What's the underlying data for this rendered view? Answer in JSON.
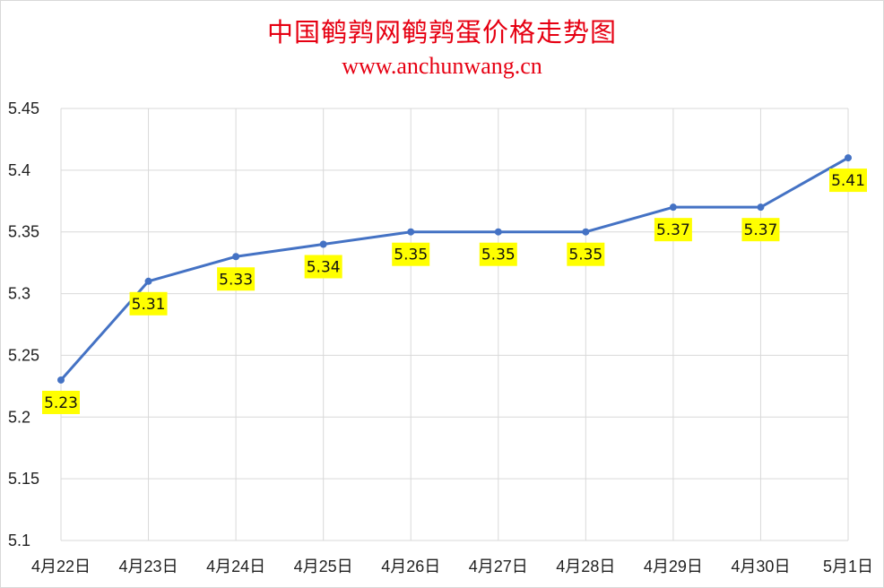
{
  "header": {
    "title": "中国鹌鹑网鹌鹑蛋价格走势图",
    "subtitle": "www.anchunwang.cn"
  },
  "chart_data": {
    "type": "line",
    "title": "中国鹌鹑网鹌鹑蛋价格走势图",
    "subtitle": "www.anchunwang.cn",
    "xlabel": "",
    "ylabel": "",
    "categories": [
      "4月22日",
      "4月23日",
      "4月24日",
      "4月25日",
      "4月26日",
      "4月27日",
      "4月28日",
      "4月29日",
      "4月30日",
      "5月1日"
    ],
    "series": [
      {
        "values": [
          5.23,
          5.31,
          5.33,
          5.34,
          5.35,
          5.35,
          5.35,
          5.37,
          5.37,
          5.41
        ],
        "labels": [
          "5.23",
          "5.31",
          "5.33",
          "5.34",
          "5.35",
          "5.35",
          "5.35",
          "5.37",
          "5.37",
          "5.41"
        ]
      }
    ],
    "ylim": [
      5.1,
      5.45
    ],
    "yticks": [
      5.1,
      5.15,
      5.2,
      5.25,
      5.3,
      5.35,
      5.4,
      5.45
    ],
    "ytick_labels": [
      "5.1",
      "5.15",
      "5.2",
      "5.25",
      "5.3",
      "5.35",
      "5.4",
      "5.45"
    ],
    "grid": true,
    "legend": "none",
    "colors": {
      "line": "#4472c4",
      "marker": "#4472c4",
      "label_bg": "#ffff00",
      "grid": "#d9d9d9",
      "title": "#e60012"
    }
  }
}
